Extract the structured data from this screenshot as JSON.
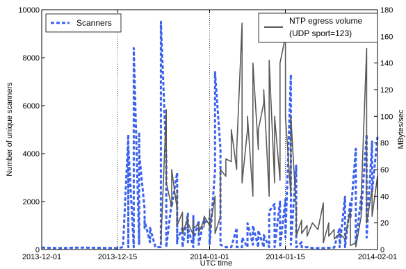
{
  "chart_data": {
    "type": "line",
    "xlabel": "UTC time",
    "ylabel_left": "Number of unique scanners",
    "ylabel_right": "MBytes/sec",
    "x_ticks": [
      "2013-12-01",
      "2013-12-15",
      "2014-01-01",
      "2014-01-15",
      "2014-02-01"
    ],
    "x_range": [
      "2013-12-01",
      "2014-02-01"
    ],
    "y_left_ticks": [
      0,
      2000,
      4000,
      6000,
      8000,
      10000
    ],
    "y_left_range": [
      0,
      10000
    ],
    "y_right_ticks": [
      0,
      20,
      40,
      60,
      80,
      100,
      120,
      140,
      160,
      180
    ],
    "y_right_range": [
      0,
      180
    ],
    "grid": "dotted vertical at major date ticks",
    "legend_left": {
      "position": "top-left",
      "label": "Scanners"
    },
    "legend_right": {
      "position": "top-right",
      "label_line1": "NTP egress volume",
      "label_line2": "(UDP sport=123)"
    },
    "series": [
      {
        "name": "Scanners",
        "axis": "left",
        "color": "#3a62ee",
        "style": "dashed",
        "points": [
          [
            "2013-12-01",
            80
          ],
          [
            "2013-12-04",
            60
          ],
          [
            "2013-12-08",
            80
          ],
          [
            "2013-12-12",
            70
          ],
          [
            "2013-12-15",
            60
          ],
          [
            "2013-12-16",
            100
          ],
          [
            "2013-12-17",
            4800
          ],
          [
            "2013-12-17",
            100
          ],
          [
            "2013-12-17",
            4300
          ],
          [
            "2013-12-18",
            100
          ],
          [
            "2013-12-18",
            8400
          ],
          [
            "2013-12-19",
            200
          ],
          [
            "2013-12-19",
            4900
          ],
          [
            "2013-12-19",
            4000
          ],
          [
            "2013-12-20",
            1700
          ],
          [
            "2013-12-20",
            900
          ],
          [
            "2013-12-20",
            1200
          ],
          [
            "2013-12-21",
            300
          ],
          [
            "2013-12-21",
            900
          ],
          [
            "2013-12-22",
            100
          ],
          [
            "2013-12-23",
            100
          ],
          [
            "2013-12-23",
            2400
          ],
          [
            "2013-12-23",
            9500
          ],
          [
            "2013-12-24",
            3800
          ],
          [
            "2013-12-24",
            100
          ],
          [
            "2013-12-25",
            2000
          ],
          [
            "2013-12-25",
            1800
          ],
          [
            "2013-12-26",
            3200
          ],
          [
            "2013-12-26",
            200
          ],
          [
            "2013-12-26",
            1600
          ],
          [
            "2013-12-26",
            400
          ],
          [
            "2013-12-27",
            900
          ],
          [
            "2013-12-27",
            100
          ],
          [
            "2013-12-28",
            1500
          ],
          [
            "2013-12-28",
            300
          ],
          [
            "2013-12-28",
            900
          ],
          [
            "2013-12-29",
            100
          ],
          [
            "2013-12-29",
            1400
          ],
          [
            "2013-12-29",
            400
          ],
          [
            "2013-12-30",
            1200
          ],
          [
            "2013-12-30",
            200
          ],
          [
            "2013-12-31",
            1300
          ],
          [
            "2013-12-31",
            1100
          ],
          [
            "2014-01-01",
            1300
          ],
          [
            "2014-01-01",
            200
          ],
          [
            "2014-01-02",
            3300
          ],
          [
            "2014-01-02",
            7400
          ],
          [
            "2014-01-03",
            4200
          ],
          [
            "2014-01-03",
            200
          ],
          [
            "2014-01-04",
            100
          ],
          [
            "2014-01-05",
            100
          ],
          [
            "2014-01-06",
            900
          ],
          [
            "2014-01-06",
            100
          ],
          [
            "2014-01-07",
            100
          ],
          [
            "2014-01-07",
            500
          ],
          [
            "2014-01-08",
            100
          ],
          [
            "2014-01-08",
            1100
          ],
          [
            "2014-01-09",
            200
          ],
          [
            "2014-01-09",
            1000
          ],
          [
            "2014-01-10",
            100
          ],
          [
            "2014-01-10",
            800
          ],
          [
            "2014-01-11",
            100
          ],
          [
            "2014-01-11",
            600
          ],
          [
            "2014-01-12",
            100
          ],
          [
            "2014-01-12",
            1600
          ],
          [
            "2014-01-13",
            1900
          ],
          [
            "2014-01-13",
            100
          ],
          [
            "2014-01-14",
            2000
          ],
          [
            "2014-01-14",
            100
          ],
          [
            "2014-01-15",
            2100
          ],
          [
            "2014-01-15",
            500
          ],
          [
            "2014-01-16",
            7300
          ],
          [
            "2014-01-16",
            200
          ],
          [
            "2014-01-17",
            3500
          ],
          [
            "2014-01-17",
            100
          ],
          [
            "2014-01-18",
            300
          ],
          [
            "2014-01-18",
            100
          ],
          [
            "2014-01-19",
            100
          ],
          [
            "2014-01-20",
            60
          ],
          [
            "2014-01-22",
            60
          ],
          [
            "2014-01-24",
            80
          ],
          [
            "2014-01-25",
            900
          ],
          [
            "2014-01-25",
            100
          ],
          [
            "2014-01-26",
            2200
          ],
          [
            "2014-01-26",
            100
          ],
          [
            "2014-01-27",
            2000
          ],
          [
            "2014-01-27",
            1300
          ],
          [
            "2014-01-28",
            4200
          ],
          [
            "2014-01-28",
            200
          ],
          [
            "2014-01-29",
            2200
          ],
          [
            "2014-01-29",
            1600
          ],
          [
            "2014-01-30",
            4800
          ],
          [
            "2014-01-30",
            500
          ],
          [
            "2014-01-31",
            4500
          ],
          [
            "2014-01-31",
            2400
          ],
          [
            "2014-02-01",
            4700
          ]
        ]
      },
      {
        "name": "NTP egress volume (UDP sport=123)",
        "axis": "right",
        "color": "#595959",
        "style": "solid",
        "points": [
          [
            "2013-12-23",
            4
          ],
          [
            "2013-12-24",
            105
          ],
          [
            "2013-12-24",
            50
          ],
          [
            "2013-12-25",
            32
          ],
          [
            "2013-12-25",
            60
          ],
          [
            "2013-12-26",
            30
          ],
          [
            "2013-12-26",
            45
          ],
          [
            "2013-12-26",
            18
          ],
          [
            "2013-12-27",
            28
          ],
          [
            "2013-12-27",
            12
          ],
          [
            "2013-12-28",
            24
          ],
          [
            "2013-12-28",
            14
          ],
          [
            "2013-12-28",
            20
          ],
          [
            "2013-12-29",
            11
          ],
          [
            "2013-12-29",
            22
          ],
          [
            "2013-12-29",
            16
          ],
          [
            "2013-12-30",
            19
          ],
          [
            "2013-12-30",
            13
          ],
          [
            "2013-12-31",
            22
          ],
          [
            "2013-12-31",
            17
          ],
          [
            "2013-12-31",
            25
          ],
          [
            "2014-01-01",
            18
          ],
          [
            "2014-01-01",
            30
          ],
          [
            "2014-01-01",
            15
          ],
          [
            "2014-01-02",
            40
          ],
          [
            "2014-01-02",
            20
          ],
          [
            "2014-01-02",
            12
          ],
          [
            "2014-01-03",
            25
          ],
          [
            "2014-01-03",
            60
          ],
          [
            "2014-01-04",
            55
          ],
          [
            "2014-01-04",
            68
          ],
          [
            "2014-01-05",
            66
          ],
          [
            "2014-01-05",
            90
          ],
          [
            "2014-01-06",
            60
          ],
          [
            "2014-01-06",
            75
          ],
          [
            "2014-01-07",
            170
          ],
          [
            "2014-01-07",
            50
          ],
          [
            "2014-01-08",
            90
          ],
          [
            "2014-01-08",
            100
          ],
          [
            "2014-01-09",
            40
          ],
          [
            "2014-01-09",
            140
          ],
          [
            "2014-01-10",
            75
          ],
          [
            "2014-01-10",
            90
          ],
          [
            "2014-01-11",
            110
          ],
          [
            "2014-01-11",
            120
          ],
          [
            "2014-01-12",
            40
          ],
          [
            "2014-01-12",
            142
          ],
          [
            "2014-01-13",
            50
          ],
          [
            "2014-01-13",
            100
          ],
          [
            "2014-01-14",
            52
          ],
          [
            "2014-01-14",
            140
          ],
          [
            "2014-01-15",
            160
          ],
          [
            "2014-01-15",
            100
          ],
          [
            "2014-01-16",
            40
          ],
          [
            "2014-01-16",
            100
          ],
          [
            "2014-01-17",
            30
          ],
          [
            "2014-01-17",
            10
          ],
          [
            "2014-01-18",
            22
          ],
          [
            "2014-01-18",
            12
          ],
          [
            "2014-01-19",
            18
          ],
          [
            "2014-01-19",
            10
          ],
          [
            "2014-01-20",
            20
          ],
          [
            "2014-01-21",
            15
          ],
          [
            "2014-01-22",
            35
          ],
          [
            "2014-01-22",
            5
          ],
          [
            "2014-01-23",
            20
          ],
          [
            "2014-01-23",
            10
          ],
          [
            "2014-01-24",
            15
          ],
          [
            "2014-01-24",
            8
          ],
          [
            "2014-01-25",
            12
          ],
          [
            "2014-01-26",
            8
          ],
          [
            "2014-01-27",
            30
          ],
          [
            "2014-01-27",
            3
          ],
          [
            "2014-01-28",
            5
          ],
          [
            "2014-01-28",
            2
          ],
          [
            "2014-01-29",
            25
          ],
          [
            "2014-01-29",
            40
          ],
          [
            "2014-01-30",
            151
          ],
          [
            "2014-01-30",
            20
          ],
          [
            "2014-01-31",
            45
          ],
          [
            "2014-01-31",
            25
          ],
          [
            "2014-02-01",
            55
          ],
          [
            "2014-02-01",
            30
          ]
        ]
      }
    ]
  }
}
